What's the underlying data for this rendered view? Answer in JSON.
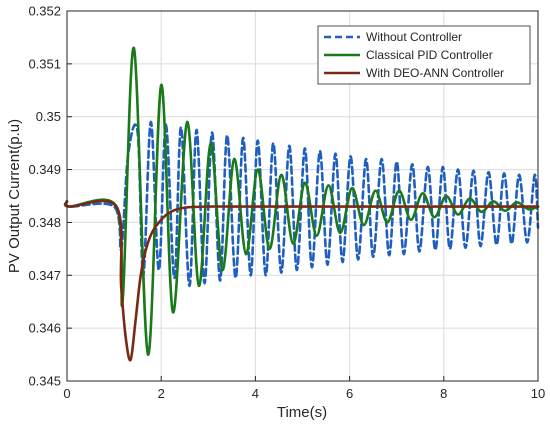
{
  "chart_data": {
    "type": "line",
    "title": "",
    "xlabel": "Time(s)",
    "ylabel": "PV Output Current(p.u)",
    "xlim": [
      0,
      10
    ],
    "ylim": [
      0.345,
      0.352
    ],
    "xticks": [
      "0",
      "2",
      "4",
      "6",
      "8",
      "10"
    ],
    "yticks": [
      "0.345",
      "0.346",
      "0.347",
      "0.348",
      "0.349",
      "0.35",
      "0.351",
      "0.352"
    ],
    "grid": true,
    "legend_position": "top-right",
    "series": [
      {
        "name": "Without Controller",
        "color": "#1f5fbf",
        "style": "dashed",
        "x": [
          0,
          0.05,
          1.0,
          1.15,
          1.3,
          1.5,
          1.62,
          1.78,
          1.95,
          2.1,
          2.28,
          2.42,
          2.6,
          2.75,
          2.92,
          3.08,
          3.25,
          3.4,
          3.58,
          3.74,
          3.9,
          4.05,
          4.22,
          4.38,
          4.55,
          4.72,
          4.88,
          5.05,
          5.2,
          5.37,
          5.53,
          5.7,
          5.85,
          6.02,
          6.18,
          6.35,
          6.5,
          6.68,
          6.84,
          7.0,
          7.15,
          7.33,
          7.48,
          7.66,
          7.82,
          7.98,
          8.13,
          8.3,
          8.46,
          8.63,
          8.78,
          8.95,
          9.12,
          9.28,
          9.44,
          9.6,
          9.77,
          9.93,
          10.0
        ],
        "y": [
          0.3484,
          0.3483,
          0.3483,
          0.3475,
          0.3493,
          0.3497,
          0.347,
          0.3499,
          0.3471,
          0.34985,
          0.34695,
          0.3498,
          0.3468,
          0.34975,
          0.34685,
          0.3497,
          0.3469,
          0.34965,
          0.34695,
          0.3496,
          0.347,
          0.34955,
          0.347,
          0.3495,
          0.34705,
          0.34945,
          0.3471,
          0.3494,
          0.34715,
          0.34935,
          0.3472,
          0.3493,
          0.34725,
          0.34925,
          0.3473,
          0.3492,
          0.34735,
          0.3492,
          0.34738,
          0.34915,
          0.3474,
          0.3491,
          0.34745,
          0.34905,
          0.34748,
          0.34905,
          0.3475,
          0.349,
          0.34752,
          0.34898,
          0.34755,
          0.34895,
          0.34758,
          0.34893,
          0.3476,
          0.3489,
          0.34762,
          0.3489,
          0.3479
        ]
      },
      {
        "name": "Classical PID Controller",
        "color": "#1a7a1a",
        "style": "solid",
        "x": [
          0,
          0.05,
          1.05,
          1.18,
          1.42,
          1.72,
          2.0,
          2.25,
          2.55,
          2.8,
          3.05,
          3.3,
          3.55,
          3.8,
          4.05,
          4.3,
          4.55,
          4.8,
          5.05,
          5.3,
          5.55,
          5.8,
          6.05,
          6.3,
          6.55,
          6.8,
          7.05,
          7.3,
          7.55,
          7.8,
          8.05,
          8.3,
          8.55,
          8.8,
          9.05,
          9.3,
          9.55,
          9.8,
          10.0
        ],
        "y": [
          0.3484,
          0.3483,
          0.3483,
          0.3465,
          0.3513,
          0.3455,
          0.3506,
          0.3463,
          0.3499,
          0.3468,
          0.3495,
          0.3471,
          0.3492,
          0.3474,
          0.349,
          0.3475,
          0.3489,
          0.3476,
          0.34875,
          0.34775,
          0.3487,
          0.3478,
          0.34865,
          0.34795,
          0.3486,
          0.348,
          0.3486,
          0.34805,
          0.34855,
          0.3481,
          0.3485,
          0.34815,
          0.34845,
          0.3482,
          0.3484,
          0.34822,
          0.34838,
          0.34825,
          0.3483
        ]
      },
      {
        "name": "With DEO-ANN Controller",
        "color": "#7a2a14",
        "style": "solid",
        "x": [
          0,
          0.05,
          1.05,
          1.15,
          1.25,
          1.35,
          1.45,
          1.55,
          1.65,
          1.8,
          2.0,
          2.2,
          2.5,
          3.0,
          4.0,
          6.0,
          10.0
        ],
        "y": [
          0.3484,
          0.3483,
          0.3483,
          0.3468,
          0.3458,
          0.3454,
          0.3461,
          0.3469,
          0.3474,
          0.3478,
          0.34805,
          0.3482,
          0.34828,
          0.3483,
          0.3483,
          0.3483,
          0.3483
        ]
      }
    ]
  }
}
